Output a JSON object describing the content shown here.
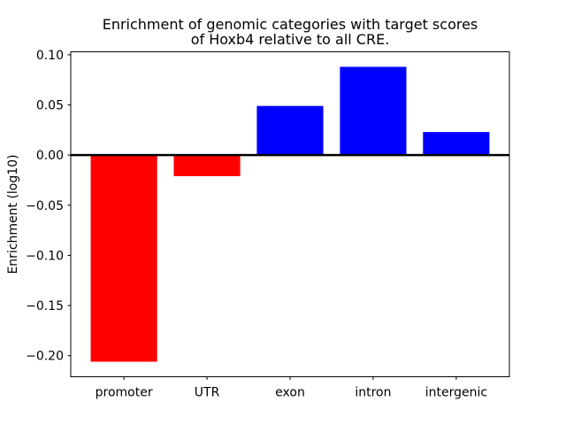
{
  "figure": {
    "title_line1": "Enrichment of genomic categories with target scores",
    "title_line2": "of Hoxb4 relative to all CRE.",
    "ylabel": "Enrichment (log10)"
  },
  "chart_data": {
    "type": "bar",
    "title": "Enrichment of genomic categories with target scores of Hoxb4 relative to all CRE.",
    "xlabel": "",
    "ylabel": "Enrichment (log10)",
    "categories": [
      "promoter",
      "UTR",
      "exon",
      "intron",
      "intergenic"
    ],
    "values": [
      -0.206,
      -0.021,
      0.049,
      0.088,
      0.023
    ],
    "positive_color": "#0000ff",
    "negative_color": "#ff0000",
    "bar_colors": [
      "#ff0000",
      "#ff0000",
      "#0000ff",
      "#0000ff",
      "#0000ff"
    ],
    "ylim": [
      -0.221,
      0.103
    ],
    "yticks": [
      -0.2,
      -0.15,
      -0.1,
      -0.05,
      0.0,
      0.05,
      0.1
    ],
    "ytick_labels": [
      "−0.20",
      "−0.15",
      "−0.10",
      "−0.05",
      "0.00",
      "0.05",
      "0.10"
    ],
    "bar_width_fraction": 0.8,
    "grid": false,
    "legend": "none",
    "zero_line": true,
    "axis_color": "#000000",
    "background": "#ffffff"
  }
}
